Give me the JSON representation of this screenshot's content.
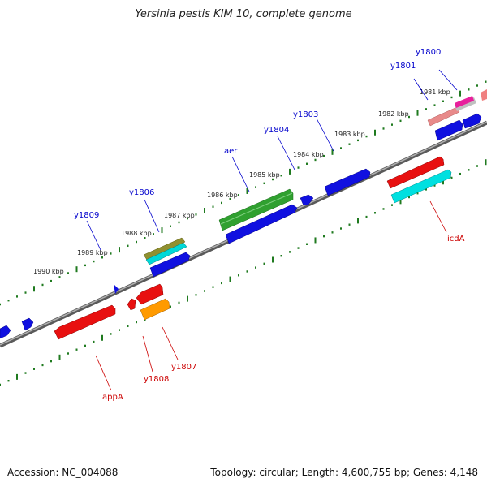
{
  "title": "Yersinia pestis KIM 10, complete genome",
  "footer": {
    "accession": "Accession: NC_004088",
    "stats": "Topology: circular; Length: 4,600,755 bp; Genes: 4,148"
  },
  "colors": {
    "backbone": "#808080",
    "tick": "#1f7a1f",
    "forward_label": "#0000cc",
    "reverse_label": "#cc0000"
  },
  "kbp_labels": [
    "1981 kbp",
    "1982 kbp",
    "1983 kbp",
    "1984 kbp",
    "1985 kbp",
    "1986 kbp",
    "1987 kbp",
    "1988 kbp",
    "1989 kbp",
    "1990 kbp"
  ],
  "genes": {
    "y1800": "y1800",
    "y1801": "y1801",
    "y1803": "y1803",
    "y1804": "y1804",
    "aer": "aer",
    "y1806": "y1806",
    "y1809": "y1809",
    "icdA": "icdA",
    "y1807": "y1807",
    "y1808": "y1808",
    "appA": "appA"
  }
}
